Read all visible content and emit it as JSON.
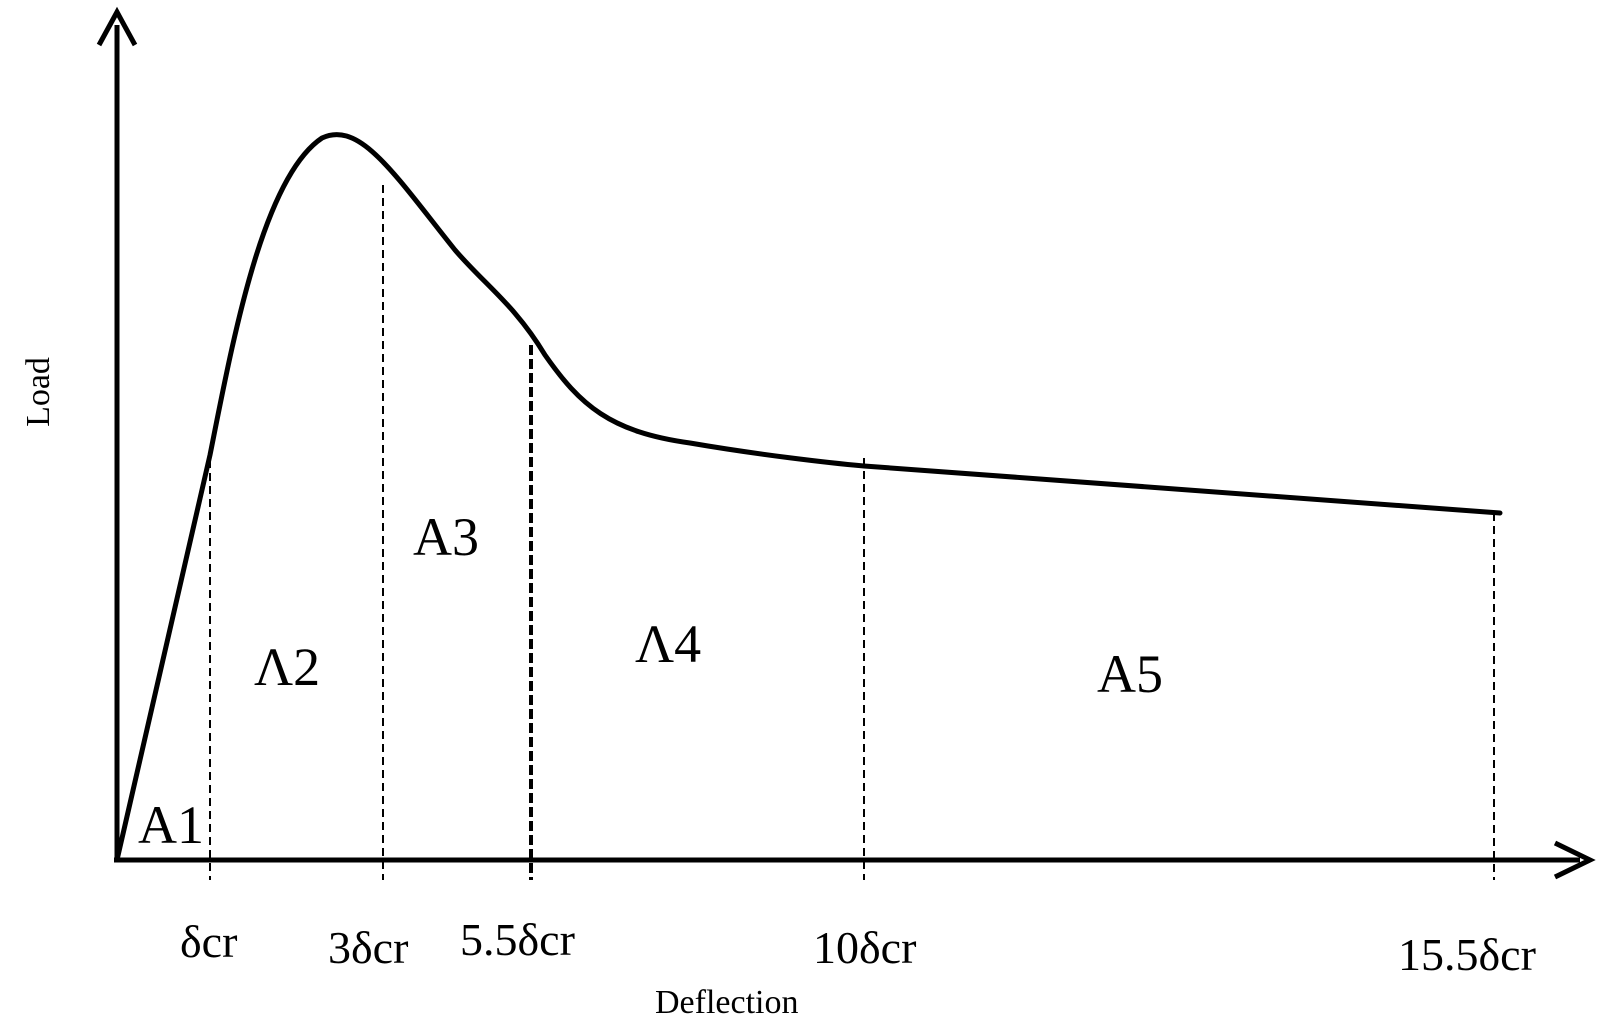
{
  "axes": {
    "x_label": "Deflection",
    "y_label": "Load"
  },
  "ticks": [
    {
      "id": "d1",
      "label": "δcr"
    },
    {
      "id": "d3",
      "label": "3δcr"
    },
    {
      "id": "d55",
      "label": "5.5δcr"
    },
    {
      "id": "d10",
      "label": "10δcr"
    },
    {
      "id": "d155",
      "label": "15.5δcr"
    }
  ],
  "areas": [
    {
      "id": "a1",
      "label": "A1"
    },
    {
      "id": "a2",
      "label": "Λ2"
    },
    {
      "id": "a3",
      "label": "A3"
    },
    {
      "id": "a4",
      "label": "Λ4"
    },
    {
      "id": "a5",
      "label": "A5"
    }
  ]
}
